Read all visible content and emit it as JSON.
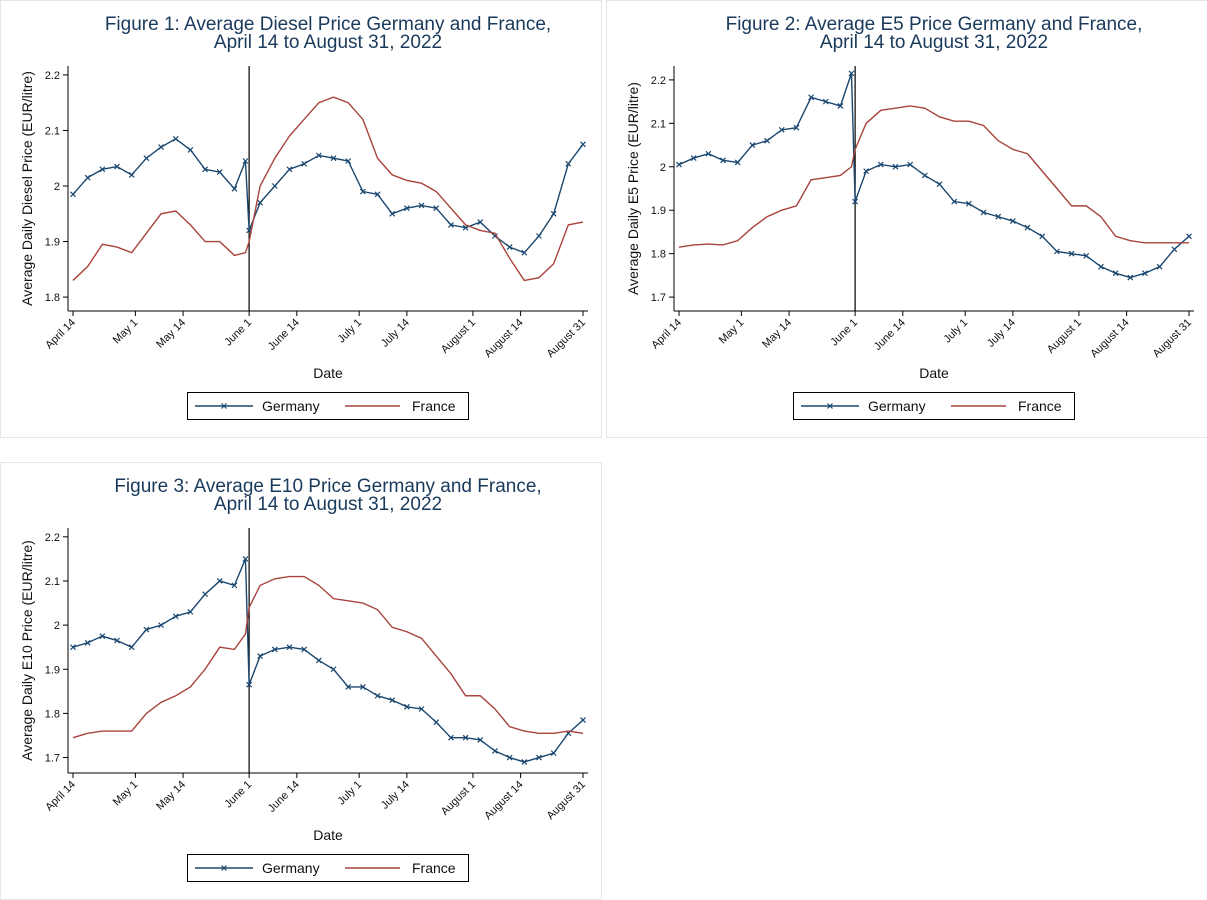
{
  "chart_data": [
    {
      "type": "line",
      "title": [
        "Figure 1: Average Diesel Price Germany and France,",
        "April 14 to August 31, 2022"
      ],
      "xlabel": "Date",
      "ylabel": "Average Daily Diesel Price (EUR/litre)",
      "x": [
        "April 14",
        "April 18",
        "April 22",
        "April 26",
        "April 30",
        "May 4",
        "May 8",
        "May 12",
        "May 16",
        "May 20",
        "May 24",
        "May 28",
        "May 31",
        "June 1",
        "June 4",
        "June 8",
        "June 12",
        "June 16",
        "June 20",
        "June 24",
        "June 28",
        "July 2",
        "July 6",
        "July 10",
        "July 14",
        "July 18",
        "July 22",
        "July 26",
        "July 30",
        "August 3",
        "August 7",
        "August 11",
        "August 15",
        "August 19",
        "August 23",
        "August 27",
        "August 31"
      ],
      "xlim": [
        "April 14",
        "August 31"
      ],
      "xticks": [
        "April 14",
        "May 1",
        "May 14",
        "June 1",
        "June 14",
        "July 1",
        "July 14",
        "August 1",
        "August 14",
        "August 31"
      ],
      "ylim": [
        1.775,
        2.216
      ],
      "yticks": [
        1.8,
        1.9,
        2,
        2.1,
        2.2
      ],
      "vline": "June 1",
      "legend": "bottom",
      "series": [
        {
          "name": "Germany",
          "color": "#1a476f",
          "marker": "x",
          "values": [
            1.985,
            2.015,
            2.03,
            2.035,
            2.02,
            2.05,
            2.07,
            2.085,
            2.065,
            2.03,
            2.025,
            1.995,
            2.045,
            1.92,
            1.97,
            2.0,
            2.03,
            2.04,
            2.055,
            2.05,
            2.045,
            1.99,
            1.985,
            1.95,
            1.96,
            1.965,
            1.96,
            1.93,
            1.925,
            1.935,
            1.91,
            1.89,
            1.88,
            1.91,
            1.95,
            2.04,
            2.075
          ]
        },
        {
          "name": "France",
          "color": "#a8433d",
          "values": [
            1.83,
            1.855,
            1.895,
            1.89,
            1.88,
            1.915,
            1.95,
            1.955,
            1.93,
            1.9,
            1.9,
            1.875,
            1.88,
            1.9,
            2.0,
            2.05,
            2.09,
            2.12,
            2.15,
            2.16,
            2.15,
            2.12,
            2.05,
            2.02,
            2.01,
            2.005,
            1.99,
            1.96,
            1.93,
            1.92,
            1.915,
            1.87,
            1.83,
            1.835,
            1.86,
            1.93,
            1.935
          ]
        }
      ]
    },
    {
      "type": "line",
      "title": [
        "Figure 2: Average E5 Price Germany and France,",
        "April 14 to August 31, 2022"
      ],
      "xlabel": "Date",
      "ylabel": "Average Daily E5 Price (EUR/litre)",
      "x": [
        "April 14",
        "April 18",
        "April 22",
        "April 26",
        "April 30",
        "May 4",
        "May 8",
        "May 12",
        "May 16",
        "May 20",
        "May 24",
        "May 28",
        "May 31",
        "June 1",
        "June 4",
        "June 8",
        "June 12",
        "June 16",
        "June 20",
        "June 24",
        "June 28",
        "July 2",
        "July 6",
        "July 10",
        "July 14",
        "July 18",
        "July 22",
        "July 26",
        "July 30",
        "August 3",
        "August 7",
        "August 11",
        "August 15",
        "August 19",
        "August 23",
        "August 27",
        "August 31"
      ],
      "xlim": [
        "April 14",
        "August 31"
      ],
      "xticks": [
        "April 14",
        "May 1",
        "May 14",
        "June 1",
        "June 14",
        "July 1",
        "July 14",
        "August 1",
        "August 14",
        "August 31"
      ],
      "ylim": [
        1.668,
        2.232
      ],
      "yticks": [
        1.7,
        1.8,
        1.9,
        2,
        2.1,
        2.2
      ],
      "vline": "June 1",
      "legend": "bottom",
      "series": [
        {
          "name": "Germany",
          "color": "#1a476f",
          "marker": "x",
          "values": [
            2.005,
            2.02,
            2.03,
            2.015,
            2.01,
            2.05,
            2.06,
            2.085,
            2.09,
            2.16,
            2.15,
            2.14,
            2.215,
            1.92,
            1.99,
            2.005,
            2.0,
            2.005,
            1.98,
            1.96,
            1.92,
            1.915,
            1.895,
            1.885,
            1.875,
            1.86,
            1.84,
            1.805,
            1.8,
            1.795,
            1.77,
            1.755,
            1.745,
            1.755,
            1.77,
            1.81,
            1.84
          ]
        },
        {
          "name": "France",
          "color": "#a8433d",
          "values": [
            1.815,
            1.82,
            1.822,
            1.82,
            1.83,
            1.86,
            1.885,
            1.9,
            1.91,
            1.97,
            1.975,
            1.98,
            2.0,
            2.04,
            2.1,
            2.13,
            2.135,
            2.14,
            2.135,
            2.115,
            2.105,
            2.105,
            2.095,
            2.06,
            2.04,
            2.03,
            1.99,
            1.95,
            1.91,
            1.91,
            1.885,
            1.84,
            1.83,
            1.825,
            1.825,
            1.825,
            1.825
          ]
        }
      ]
    },
    {
      "type": "line",
      "title": [
        "Figure 3: Average E10 Price Germany and France,",
        "April 14 to August 31, 2022"
      ],
      "xlabel": "Date",
      "ylabel": "Average Daily E10 Price (EUR/litre)",
      "x": [
        "April 14",
        "April 18",
        "April 22",
        "April 26",
        "April 30",
        "May 4",
        "May 8",
        "May 12",
        "May 16",
        "May 20",
        "May 24",
        "May 28",
        "May 31",
        "June 1",
        "June 4",
        "June 8",
        "June 12",
        "June 16",
        "June 20",
        "June 24",
        "June 28",
        "July 2",
        "July 6",
        "July 10",
        "July 14",
        "July 18",
        "July 22",
        "July 26",
        "July 30",
        "August 3",
        "August 7",
        "August 11",
        "August 15",
        "August 19",
        "August 23",
        "August 27",
        "August 31"
      ],
      "xlim": [
        "April 14",
        "August 31"
      ],
      "xticks": [
        "April 14",
        "May 1",
        "May 14",
        "June 1",
        "June 14",
        "July 1",
        "July 14",
        "August 1",
        "August 14",
        "August 31"
      ],
      "ylim": [
        1.665,
        2.22
      ],
      "yticks": [
        1.7,
        1.8,
        1.9,
        2,
        2.1,
        2.2
      ],
      "vline": "June 1",
      "legend": "bottom",
      "series": [
        {
          "name": "Germany",
          "color": "#1a476f",
          "marker": "x",
          "values": [
            1.95,
            1.96,
            1.975,
            1.965,
            1.95,
            1.99,
            2.0,
            2.02,
            2.03,
            2.07,
            2.1,
            2.09,
            2.15,
            1.865,
            1.93,
            1.945,
            1.95,
            1.945,
            1.92,
            1.9,
            1.86,
            1.86,
            1.84,
            1.83,
            1.815,
            1.81,
            1.78,
            1.745,
            1.745,
            1.74,
            1.715,
            1.7,
            1.69,
            1.7,
            1.71,
            1.755,
            1.785
          ]
        },
        {
          "name": "France",
          "color": "#a8433d",
          "values": [
            1.745,
            1.755,
            1.76,
            1.76,
            1.76,
            1.8,
            1.825,
            1.84,
            1.86,
            1.9,
            1.95,
            1.945,
            1.98,
            2.04,
            2.09,
            2.105,
            2.11,
            2.11,
            2.09,
            2.06,
            2.055,
            2.05,
            2.035,
            1.995,
            1.985,
            1.97,
            1.93,
            1.89,
            1.84,
            1.84,
            1.81,
            1.77,
            1.76,
            1.755,
            1.755,
            1.76,
            1.755
          ]
        }
      ]
    }
  ]
}
